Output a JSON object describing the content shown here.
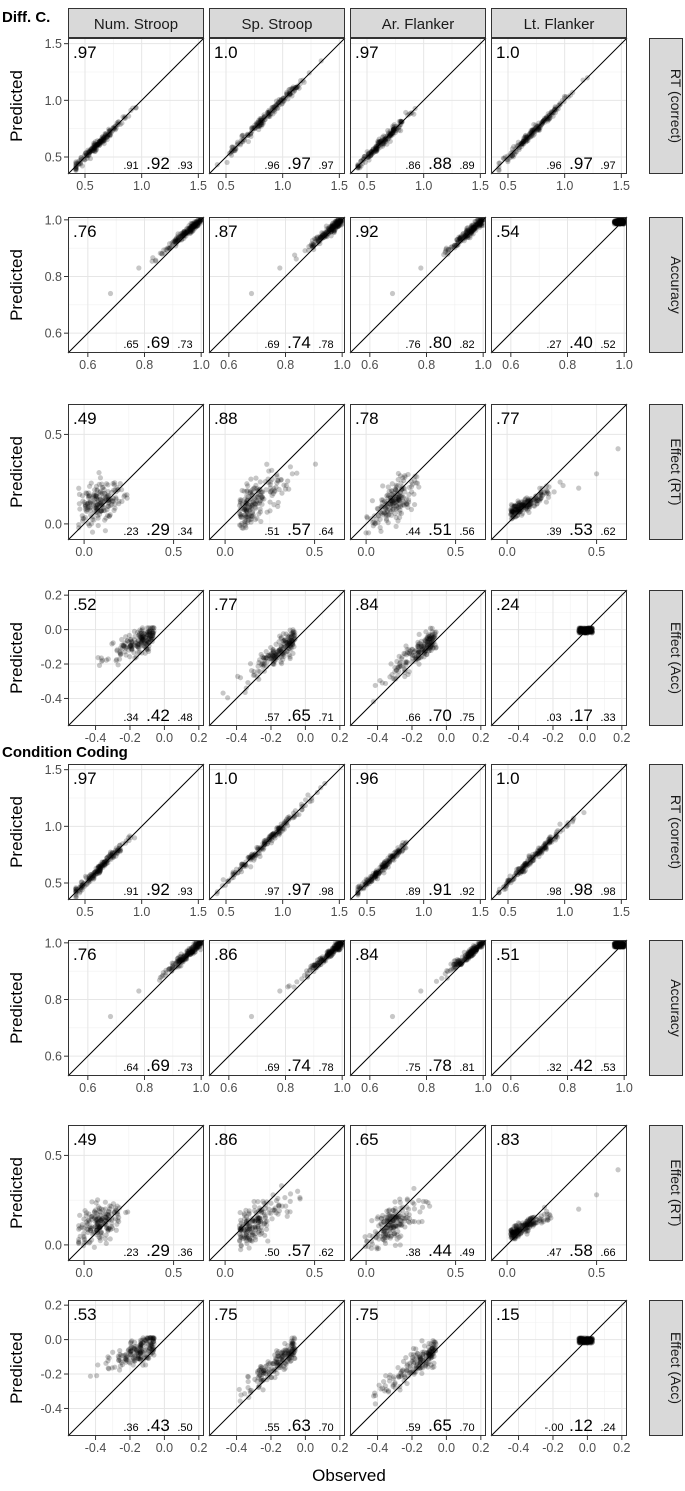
{
  "chart_data": {
    "type": "scatter",
    "xlabel": "Observed",
    "ylabel": "Predicted",
    "columns": [
      "Num. Stroop",
      "Sp. Stroop",
      "Ar. Flanker",
      "Lt. Flanker"
    ],
    "section_labels": [
      "Diff. C.",
      "Condition Coding"
    ],
    "measures": [
      {
        "label": "RT (correct)",
        "lim": [
          0.35,
          1.55
        ],
        "ticks": [
          "0.5",
          "1.0",
          "1.5"
        ],
        "tick_values": [
          0.5,
          1.0,
          1.5
        ]
      },
      {
        "label": "Accuracy",
        "lim": [
          0.53,
          1.01
        ],
        "ticks": [
          "0.6",
          "0.8",
          "1.0"
        ],
        "tick_values": [
          0.6,
          0.8,
          1.0
        ]
      },
      {
        "label": "Effect (RT)",
        "lim": [
          -0.09,
          0.67
        ],
        "ticks": [
          "0.0",
          "0.5"
        ],
        "tick_values": [
          0.0,
          0.5
        ]
      },
      {
        "label": "Effect (Acc)",
        "lim": [
          -0.56,
          0.23
        ],
        "xticks": [
          "-0.4",
          "-0.2",
          "0.0",
          "0.2"
        ],
        "xtick_values": [
          -0.4,
          -0.2,
          0.0,
          0.2
        ],
        "yticks": [
          "0.2",
          "0.0",
          "-0.2",
          "-0.4"
        ],
        "ytick_values": [
          0.2,
          0.0,
          -0.2,
          -0.4
        ]
      }
    ],
    "panels": [
      {
        "section": "Diff. C.",
        "rows": [
          [
            {
              "r2": ".97",
              "lo": ".91",
              "mid": ".92",
              "hi": ".93"
            },
            {
              "r2": "1.0",
              "lo": ".96",
              "mid": ".97",
              "hi": ".97"
            },
            {
              "r2": ".97",
              "lo": ".86",
              "mid": ".88",
              "hi": ".89"
            },
            {
              "r2": "1.0",
              "lo": ".96",
              "mid": ".97",
              "hi": ".97"
            }
          ],
          [
            {
              "r2": ".76",
              "lo": ".65",
              "mid": ".69",
              "hi": ".73"
            },
            {
              "r2": ".87",
              "lo": ".69",
              "mid": ".74",
              "hi": ".78"
            },
            {
              "r2": ".92",
              "lo": ".76",
              "mid": ".80",
              "hi": ".82"
            },
            {
              "r2": ".54",
              "lo": ".27",
              "mid": ".40",
              "hi": ".52"
            }
          ],
          [
            {
              "r2": ".49",
              "lo": ".23",
              "mid": ".29",
              "hi": ".34"
            },
            {
              "r2": ".88",
              "lo": ".51",
              "mid": ".57",
              "hi": ".64"
            },
            {
              "r2": ".78",
              "lo": ".44",
              "mid": ".51",
              "hi": ".56"
            },
            {
              "r2": ".77",
              "lo": ".39",
              "mid": ".53",
              "hi": ".62"
            }
          ],
          [
            {
              "r2": ".52",
              "lo": ".34",
              "mid": ".42",
              "hi": ".48"
            },
            {
              "r2": ".77",
              "lo": ".57",
              "mid": ".65",
              "hi": ".71"
            },
            {
              "r2": ".84",
              "lo": ".66",
              "mid": ".70",
              "hi": ".75"
            },
            {
              "r2": ".24",
              "lo": ".03",
              "mid": ".17",
              "hi": ".33"
            }
          ]
        ]
      },
      {
        "section": "Condition Coding",
        "rows": [
          [
            {
              "r2": ".97",
              "lo": ".91",
              "mid": ".92",
              "hi": ".93"
            },
            {
              "r2": "1.0",
              "lo": ".97",
              "mid": ".97",
              "hi": ".98"
            },
            {
              "r2": ".96",
              "lo": ".89",
              "mid": ".91",
              "hi": ".92"
            },
            {
              "r2": "1.0",
              "lo": ".98",
              "mid": ".98",
              "hi": ".98"
            }
          ],
          [
            {
              "r2": ".76",
              "lo": ".64",
              "mid": ".69",
              "hi": ".73"
            },
            {
              "r2": ".86",
              "lo": ".69",
              "mid": ".74",
              "hi": ".78"
            },
            {
              "r2": ".84",
              "lo": ".75",
              "mid": ".78",
              "hi": ".81"
            },
            {
              "r2": ".51",
              "lo": ".32",
              "mid": ".42",
              "hi": ".53"
            }
          ],
          [
            {
              "r2": ".49",
              "lo": ".23",
              "mid": ".29",
              "hi": ".36"
            },
            {
              "r2": ".86",
              "lo": ".50",
              "mid": ".57",
              "hi": ".62"
            },
            {
              "r2": ".65",
              "lo": ".38",
              "mid": ".44",
              "hi": ".49"
            },
            {
              "r2": ".83",
              "lo": ".47",
              "mid": ".58",
              "hi": ".66"
            }
          ],
          [
            {
              "r2": ".53",
              "lo": ".36",
              "mid": ".43",
              "hi": ".50"
            },
            {
              "r2": ".75",
              "lo": ".55",
              "mid": ".63",
              "hi": ".70"
            },
            {
              "r2": ".75",
              "lo": ".59",
              "mid": ".65",
              "hi": ".70"
            },
            {
              "r2": ".15",
              "lo": "-.00",
              "mid": ".12",
              "hi": ".24"
            }
          ]
        ]
      }
    ],
    "grid": true,
    "identity_line": true,
    "colors": {
      "points": "#000000",
      "strip_fill": "#d9d9d9",
      "strip_border": "#333333"
    }
  }
}
